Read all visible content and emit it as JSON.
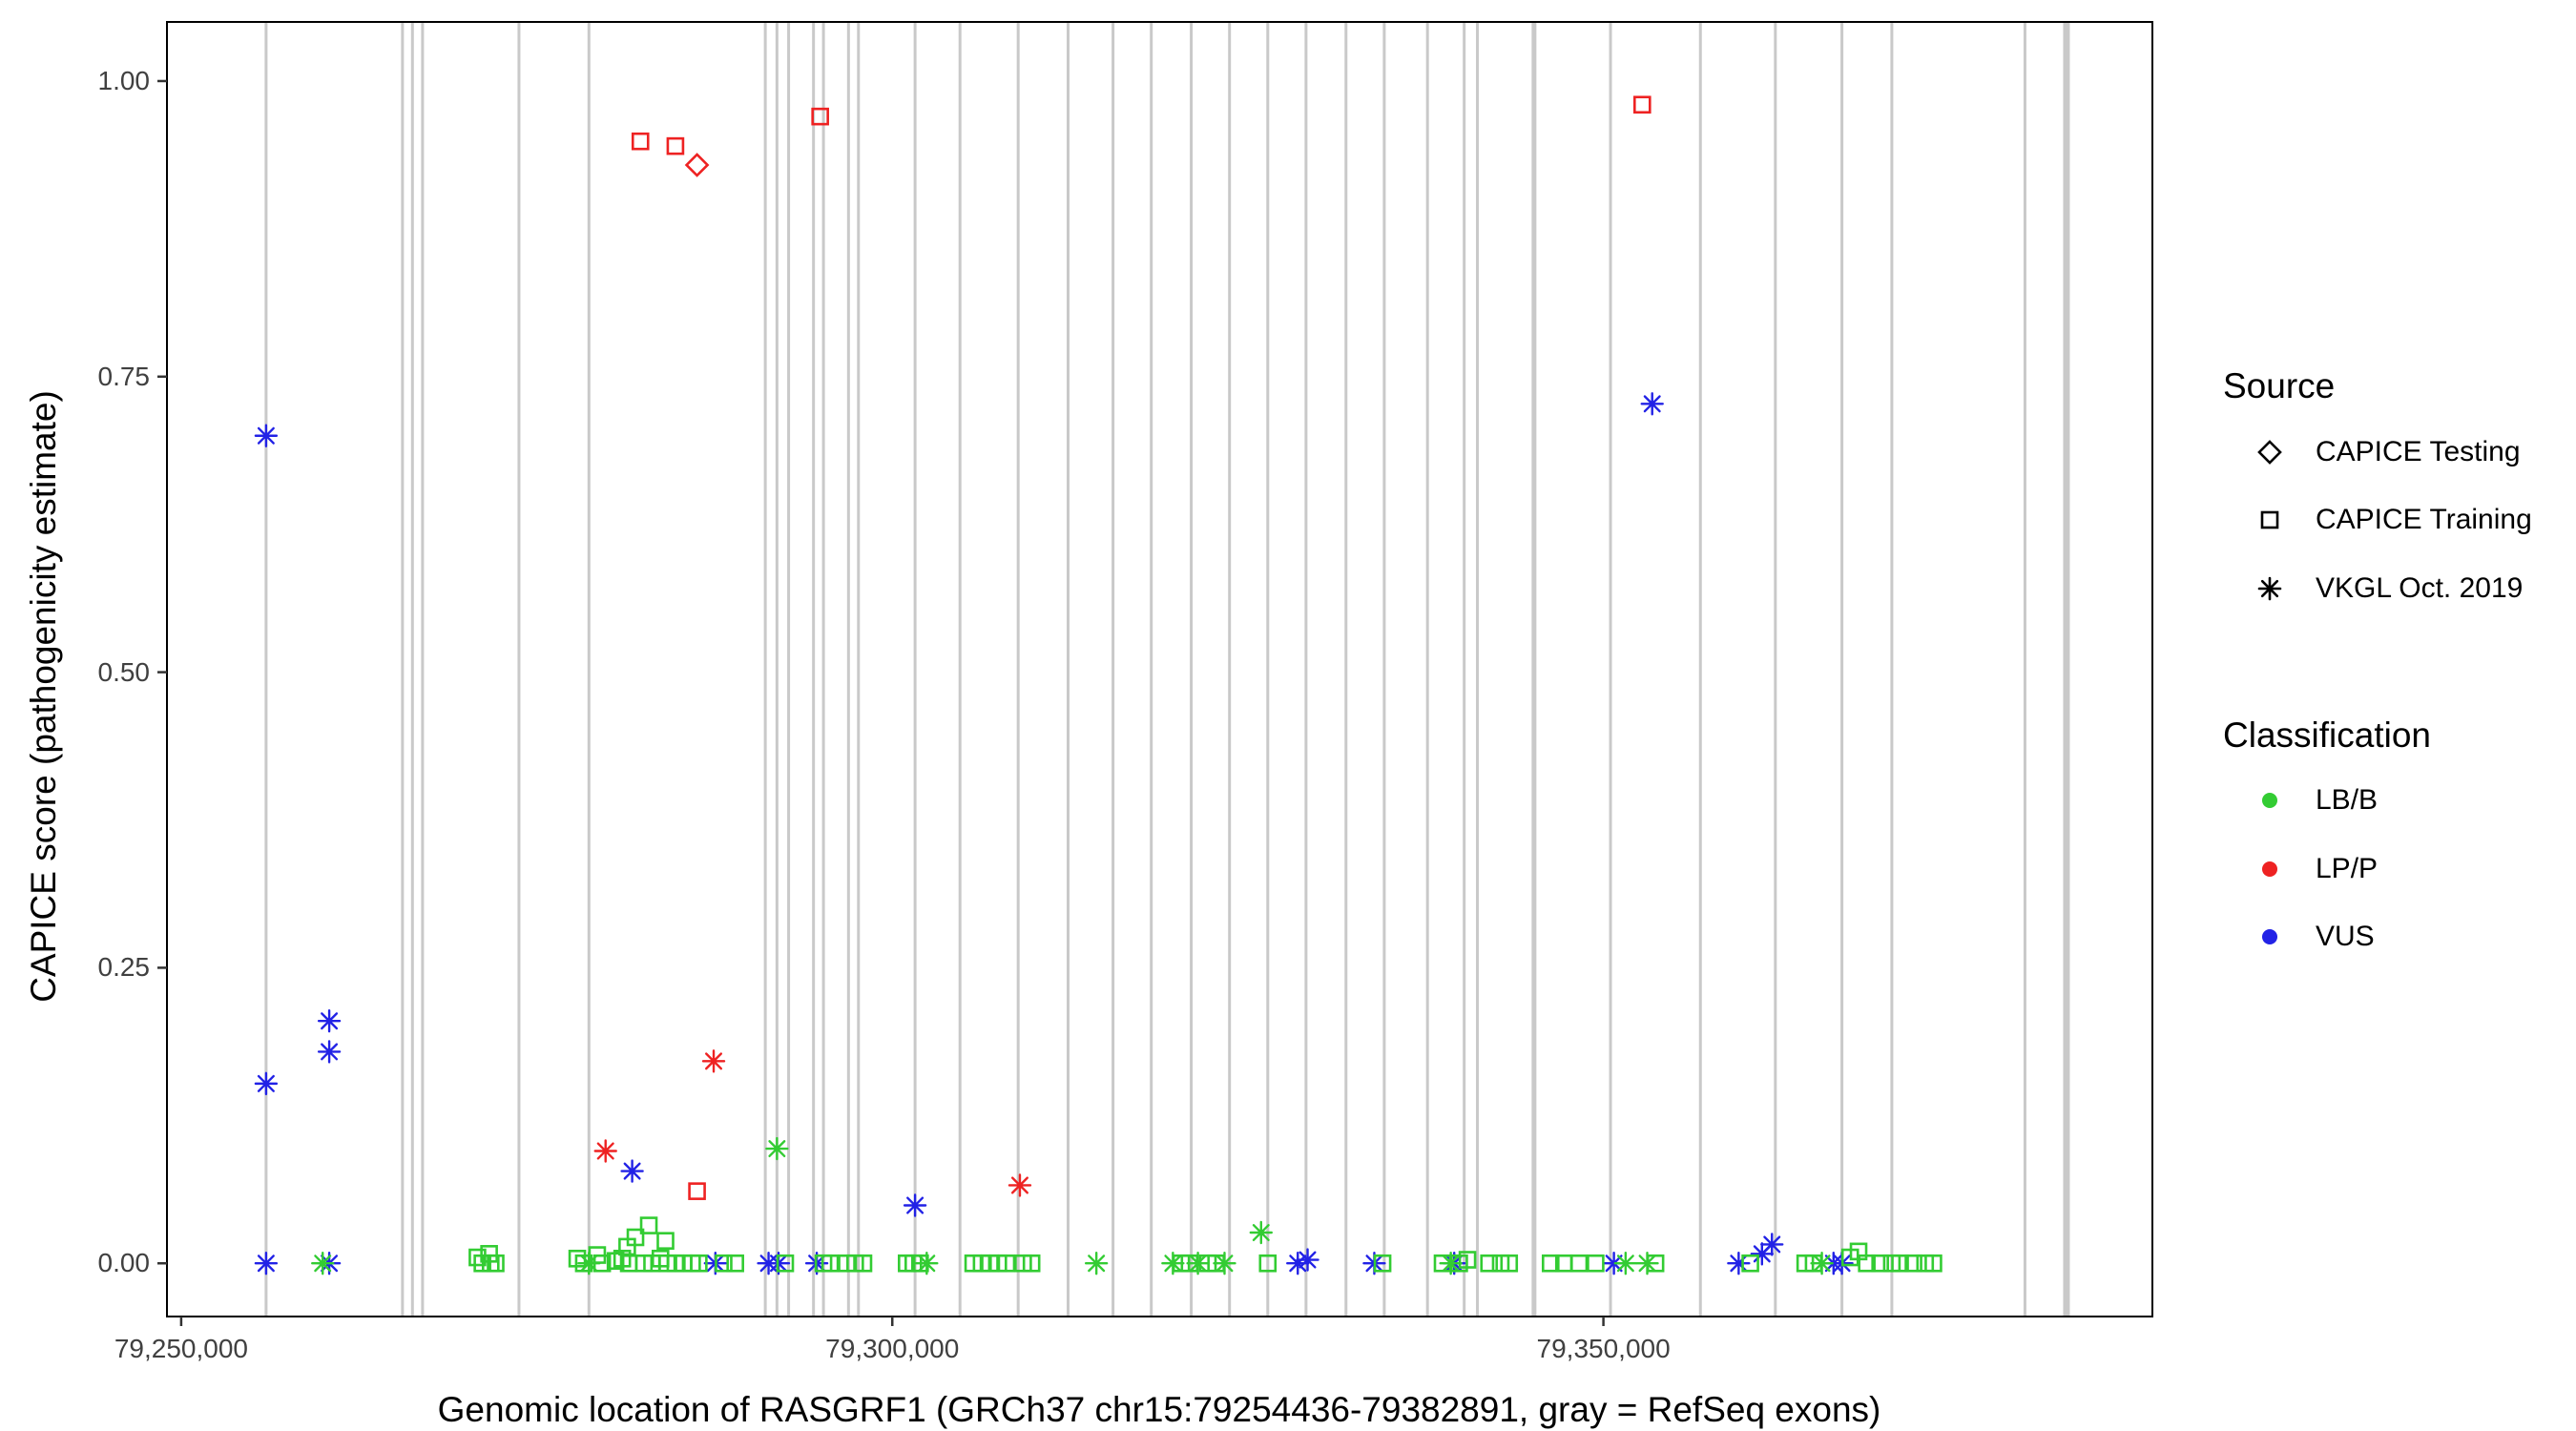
{
  "chart_data": {
    "type": "scatter",
    "title": "",
    "xlabel": "Genomic location of RASGRF1 (GRCh37 chr15:79254436-79382891, gray = RefSeq exons)",
    "ylabel": "CAPICE score (pathogenicity estimate)",
    "xlim": [
      79249000,
      79388600
    ],
    "ylim": [
      -0.045,
      1.05
    ],
    "grid": false,
    "legend_position": "right",
    "xticks": [
      {
        "value": 79250000,
        "label": "79,250,000"
      },
      {
        "value": 79300000,
        "label": "79,300,000"
      },
      {
        "value": 79350000,
        "label": "79,350,000"
      }
    ],
    "yticks": [
      {
        "value": 0.0,
        "label": "0.00"
      },
      {
        "value": 0.25,
        "label": "0.25"
      },
      {
        "value": 0.5,
        "label": "0.50"
      },
      {
        "value": 0.75,
        "label": "0.75"
      },
      {
        "value": 1.0,
        "label": "1.00"
      }
    ],
    "exon_color": "#c9c9c9",
    "exons": [
      [
        79255970,
        3
      ],
      [
        79265560,
        3
      ],
      [
        79266260,
        3
      ],
      [
        79266970,
        3
      ],
      [
        79273750,
        3
      ],
      [
        79278670,
        3
      ],
      [
        79291070,
        3
      ],
      [
        79291890,
        3
      ],
      [
        79292710,
        3
      ],
      [
        79294460,
        3
      ],
      [
        79295160,
        3
      ],
      [
        79296920,
        3
      ],
      [
        79297620,
        3
      ],
      [
        79301600,
        3
      ],
      [
        79304760,
        3
      ],
      [
        79308850,
        3
      ],
      [
        79312360,
        3
      ],
      [
        79315520,
        3
      ],
      [
        79318210,
        3
      ],
      [
        79321020,
        3
      ],
      [
        79323710,
        3
      ],
      [
        79326400,
        3
      ],
      [
        79329090,
        3
      ],
      [
        79331900,
        3
      ],
      [
        79334590,
        3
      ],
      [
        79337630,
        3
      ],
      [
        79340210,
        3
      ],
      [
        79341140,
        3
      ],
      [
        79345120,
        5
      ],
      [
        79350500,
        3
      ],
      [
        79356820,
        3
      ],
      [
        79362090,
        3
      ],
      [
        79366770,
        3
      ],
      [
        79370280,
        3
      ],
      [
        79379640,
        3
      ],
      [
        79382560,
        7
      ]
    ],
    "class_map": {
      "B": {
        "label": "LB/B",
        "color": "#33cc33"
      },
      "P": {
        "label": "LP/P",
        "color": "#ee2222"
      },
      "V": {
        "label": "VUS",
        "color": "#2222e6"
      }
    },
    "source_map": {
      "test": {
        "label": "CAPICE Testing",
        "shape": "diamond"
      },
      "train": {
        "label": "CAPICE Training",
        "shape": "square"
      },
      "vkgl": {
        "label": "VKGL Oct. 2019",
        "shape": "asterisk"
      }
    },
    "points": [
      [
        79282290,
        0.949,
        "P",
        "train"
      ],
      [
        79284750,
        0.945,
        "P",
        "train"
      ],
      [
        79294930,
        0.97,
        "P",
        "train"
      ],
      [
        79352730,
        0.98,
        "P",
        "train"
      ],
      [
        79286270,
        0.061,
        "P",
        "train"
      ],
      [
        79286270,
        0.929,
        "P",
        "test"
      ],
      [
        79279840,
        0.095,
        "P",
        "vkgl"
      ],
      [
        79287440,
        0.171,
        "P",
        "vkgl"
      ],
      [
        79308970,
        0.066,
        "P",
        "vkgl"
      ],
      [
        79255970,
        0.7,
        "V",
        "vkgl"
      ],
      [
        79255970,
        0.152,
        "V",
        "vkgl"
      ],
      [
        79255970,
        0,
        "V",
        "vkgl"
      ],
      [
        79260410,
        0.205,
        "V",
        "vkgl"
      ],
      [
        79260410,
        0.179,
        "V",
        "vkgl"
      ],
      [
        79260410,
        0,
        "V",
        "vkgl"
      ],
      [
        79281710,
        0.078,
        "V",
        "vkgl"
      ],
      [
        79301600,
        0.049,
        "V",
        "vkgl"
      ],
      [
        79353430,
        0.727,
        "V",
        "vkgl"
      ],
      [
        79361850,
        0.016,
        "V",
        "vkgl"
      ],
      [
        79287560,
        0,
        "V",
        "vkgl"
      ],
      [
        79291300,
        0,
        "V",
        "vkgl"
      ],
      [
        79292000,
        0,
        "V",
        "vkgl"
      ],
      [
        79294690,
        0,
        "V",
        "vkgl"
      ],
      [
        79328510,
        0,
        "V",
        "vkgl"
      ],
      [
        79329200,
        0.003,
        "V",
        "vkgl"
      ],
      [
        79333890,
        0,
        "V",
        "vkgl"
      ],
      [
        79339510,
        0,
        "V",
        "vkgl"
      ],
      [
        79350740,
        0,
        "V",
        "vkgl"
      ],
      [
        79359510,
        0,
        "V",
        "vkgl"
      ],
      [
        79361150,
        0.008,
        "V",
        "vkgl"
      ],
      [
        79366180,
        0,
        "V",
        "vkgl"
      ],
      [
        79366770,
        0,
        "V",
        "vkgl"
      ],
      [
        79291890,
        0.097,
        "B",
        "vkgl"
      ],
      [
        79325930,
        0.026,
        "B",
        "vkgl"
      ],
      [
        79259950,
        0,
        "B",
        "vkgl"
      ],
      [
        79278670,
        0,
        "B",
        "vkgl"
      ],
      [
        79302420,
        0,
        "B",
        "vkgl"
      ],
      [
        79314350,
        0,
        "B",
        "vkgl"
      ],
      [
        79319730,
        0,
        "B",
        "vkgl"
      ],
      [
        79321490,
        0,
        "B",
        "vkgl"
      ],
      [
        79323360,
        0,
        "B",
        "vkgl"
      ],
      [
        79339270,
        0,
        "B",
        "vkgl"
      ],
      [
        79351560,
        0,
        "B",
        "vkgl"
      ],
      [
        79353080,
        0,
        "B",
        "vkgl"
      ],
      [
        79365360,
        0,
        "B",
        "vkgl"
      ],
      [
        79270830,
        0.005,
        "B",
        "train"
      ],
      [
        79271180,
        0,
        "B",
        "train"
      ],
      [
        79271650,
        0.008,
        "B",
        "train"
      ],
      [
        79271760,
        0,
        "B",
        "train"
      ],
      [
        79272110,
        0,
        "B",
        "train"
      ],
      [
        79277850,
        0.004,
        "B",
        "train"
      ],
      [
        79278310,
        0,
        "B",
        "train"
      ],
      [
        79279250,
        0.007,
        "B",
        "train"
      ],
      [
        79279600,
        0,
        "B",
        "train"
      ],
      [
        79280540,
        0.002,
        "B",
        "train"
      ],
      [
        79281010,
        0.004,
        "B",
        "train"
      ],
      [
        79281360,
        0.014,
        "B",
        "train"
      ],
      [
        79281470,
        0,
        "B",
        "train"
      ],
      [
        79281940,
        0.022,
        "B",
        "train"
      ],
      [
        79282530,
        0,
        "B",
        "train"
      ],
      [
        79282880,
        0.032,
        "B",
        "train"
      ],
      [
        79283110,
        0,
        "B",
        "train"
      ],
      [
        79283700,
        0.004,
        "B",
        "train"
      ],
      [
        79284050,
        0.019,
        "B",
        "train"
      ],
      [
        79284160,
        0,
        "B",
        "train"
      ],
      [
        79284750,
        0,
        "B",
        "train"
      ],
      [
        79285330,
        0,
        "B",
        "train"
      ],
      [
        79285920,
        0,
        "B",
        "train"
      ],
      [
        79286390,
        0,
        "B",
        "train"
      ],
      [
        79288140,
        0,
        "B",
        "train"
      ],
      [
        79288960,
        0,
        "B",
        "train"
      ],
      [
        79292470,
        0,
        "B",
        "train"
      ],
      [
        79295160,
        0,
        "B",
        "train"
      ],
      [
        79295630,
        0,
        "B",
        "train"
      ],
      [
        79296800,
        0,
        "B",
        "train"
      ],
      [
        79297390,
        0,
        "B",
        "train"
      ],
      [
        79297970,
        0,
        "B",
        "train"
      ],
      [
        79301010,
        0,
        "B",
        "train"
      ],
      [
        79301480,
        0,
        "B",
        "train"
      ],
      [
        79301950,
        0,
        "B",
        "train"
      ],
      [
        79305690,
        0,
        "B",
        "train"
      ],
      [
        79306280,
        0,
        "B",
        "train"
      ],
      [
        79306860,
        0,
        "B",
        "train"
      ],
      [
        79307450,
        0,
        "B",
        "train"
      ],
      [
        79308030,
        0,
        "B",
        "train"
      ],
      [
        79309200,
        0,
        "B",
        "train"
      ],
      [
        79309790,
        0,
        "B",
        "train"
      ],
      [
        79320320,
        0,
        "B",
        "train"
      ],
      [
        79320900,
        0,
        "B",
        "train"
      ],
      [
        79322190,
        0,
        "B",
        "train"
      ],
      [
        79322770,
        0,
        "B",
        "train"
      ],
      [
        79326400,
        0,
        "B",
        "train"
      ],
      [
        79334470,
        0,
        "B",
        "train"
      ],
      [
        79338690,
        0,
        "B",
        "train"
      ],
      [
        79339860,
        0,
        "B",
        "train"
      ],
      [
        79340440,
        0.003,
        "B",
        "train"
      ],
      [
        79341960,
        0,
        "B",
        "train"
      ],
      [
        79342780,
        0,
        "B",
        "train"
      ],
      [
        79343370,
        0,
        "B",
        "train"
      ],
      [
        79346290,
        0,
        "B",
        "train"
      ],
      [
        79347230,
        0,
        "B",
        "train"
      ],
      [
        79348280,
        0,
        "B",
        "train"
      ],
      [
        79349450,
        0,
        "B",
        "train"
      ],
      [
        79353660,
        0,
        "B",
        "train"
      ],
      [
        79360330,
        0,
        "B",
        "train"
      ],
      [
        79364190,
        0,
        "B",
        "train"
      ],
      [
        79364780,
        0,
        "B",
        "train"
      ],
      [
        79367350,
        0.005,
        "B",
        "train"
      ],
      [
        79367940,
        0.01,
        "B",
        "train"
      ],
      [
        79368520,
        0,
        "B",
        "train"
      ],
      [
        79369460,
        0,
        "B",
        "train"
      ],
      [
        79370280,
        0,
        "B",
        "train"
      ],
      [
        79370860,
        0,
        "B",
        "train"
      ],
      [
        79371800,
        0,
        "B",
        "train"
      ],
      [
        79372620,
        0,
        "B",
        "train"
      ],
      [
        79373200,
        0,
        "B",
        "train"
      ]
    ]
  },
  "legend": {
    "source_title": "Source",
    "source_items": [
      {
        "shape": "diamond",
        "label": "CAPICE Testing"
      },
      {
        "shape": "square",
        "label": "CAPICE Training"
      },
      {
        "shape": "asterisk",
        "label": "VKGL Oct. 2019"
      }
    ],
    "classification_title": "Classification",
    "classification_items": [
      {
        "color": "#33cc33",
        "label": "LB/B"
      },
      {
        "color": "#ee2222",
        "label": "LP/P"
      },
      {
        "color": "#2222e6",
        "label": "VUS"
      }
    ]
  }
}
